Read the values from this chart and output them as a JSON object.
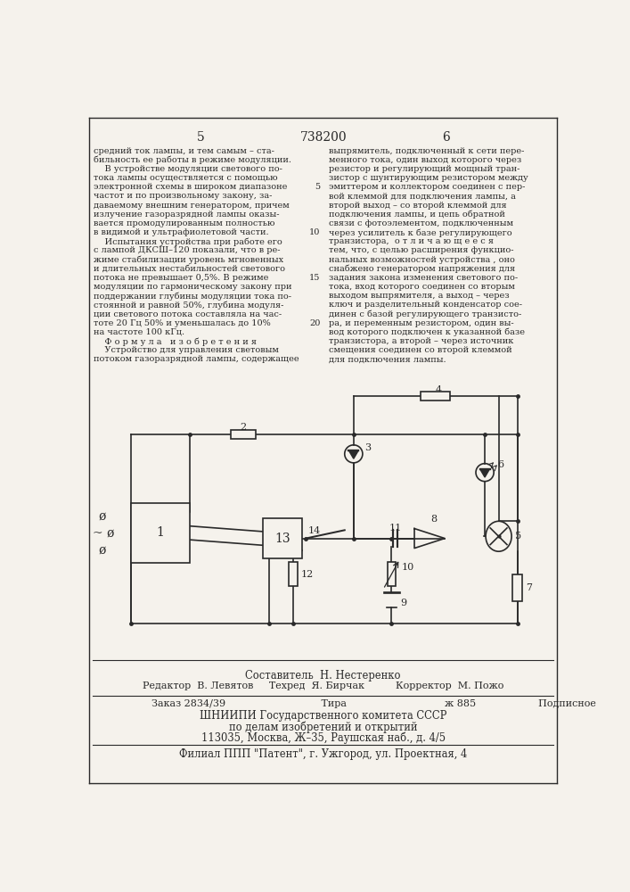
{
  "bg_color": "#f5f2ec",
  "text_color": "#2a2a2a",
  "title_center": "738200",
  "page_left": "5",
  "page_right": "6",
  "left_col_text": [
    "средний ток лампы, и тем самым – ста-",
    "бильность ее работы в режиме модуляции.",
    "    В устройстве модуляции светового по-",
    "тока лампы осуществляется с помощью",
    "электронной схемы в широком диапазоне",
    "частот и по произвольному закону, за-",
    "даваемому внешним генератором, причем",
    "излучение газоразрядной лампы оказы-",
    "вается промодулированным полностью",
    "в видимой и ультрафиолетовой части.",
    "    Испытания устройства при работе его",
    "с лампой ДКСШ–120 показали, что в ре-",
    "жиме стабилизации уровень мгновенных",
    "и длительных нестабильностей светового",
    "потока не превышает 0,5%. В режиме",
    "модуляции по гармоническому закону при",
    "поддержании глубины модуляции тока по-",
    "стоянной и равной 50%, глубина модуля-",
    "ции светового потока составляла на час-",
    "тоте 20 Гц 50% и уменьшалась до 10%",
    "на частоте 100 кГц.",
    "    Ф о р м у л а   и з о б р е т е н и я",
    "    Устройство для управления световым",
    "потоком газоразрядной лампы, содержащее"
  ],
  "right_col_text": [
    "выпрямитель, подключенный к сети пере-",
    "менного тока, один выход которого через",
    "резистор и регулирующий мощный тран-",
    "зистор с шунтирующим резистором между",
    "эмиттером и коллектором соединен с пер-",
    "вой клеммой для подключения лампы, а",
    "второй выход – со второй клеммой для",
    "подключения лампы, и цепь обратной",
    "связи с фотоэлементом, подключенным",
    "через усилитель к базе регулирующего",
    "транзистора,  о т л и ч а ю щ е е с я",
    "тем, что, с целью расширения функцио-",
    "нальных возможностей устройства , оно",
    "снабжено генератором напряжения для",
    "задания закона изменения светового по-",
    "тока, вход которого соединен со вторым",
    "выходом выпрямителя, а выход – через",
    "ключ и разделительный конденсатор сое-",
    "динен с базой регулирующего транзисто-",
    "ра, и переменным резистором, один вы-",
    "вод которого подключен к указанной базе",
    "транзистора, а второй – через источник",
    "смещения соединен со второй клеммой",
    "для подключения лампы."
  ],
  "line_numbers": {
    "4": "5",
    "9": "10",
    "14": "15",
    "19": "20"
  },
  "footer_lines": [
    "Составитель  Н. Нестеренко",
    "Редактор  В. Левятов     Техред  Я. Бирчак          Корректор  М. Пожо",
    "Заказ 2834/39          Тираж 885                    Подписное",
    "ШНИИПИ Государственного комитета СССР",
    "по делам изобретений и открытий",
    "113035, Москва, Ж–35, Раушская наб., д. 4/5",
    "Филиал ППП \"Патент\", г. Ужгород, ул. Проектная, 4"
  ]
}
